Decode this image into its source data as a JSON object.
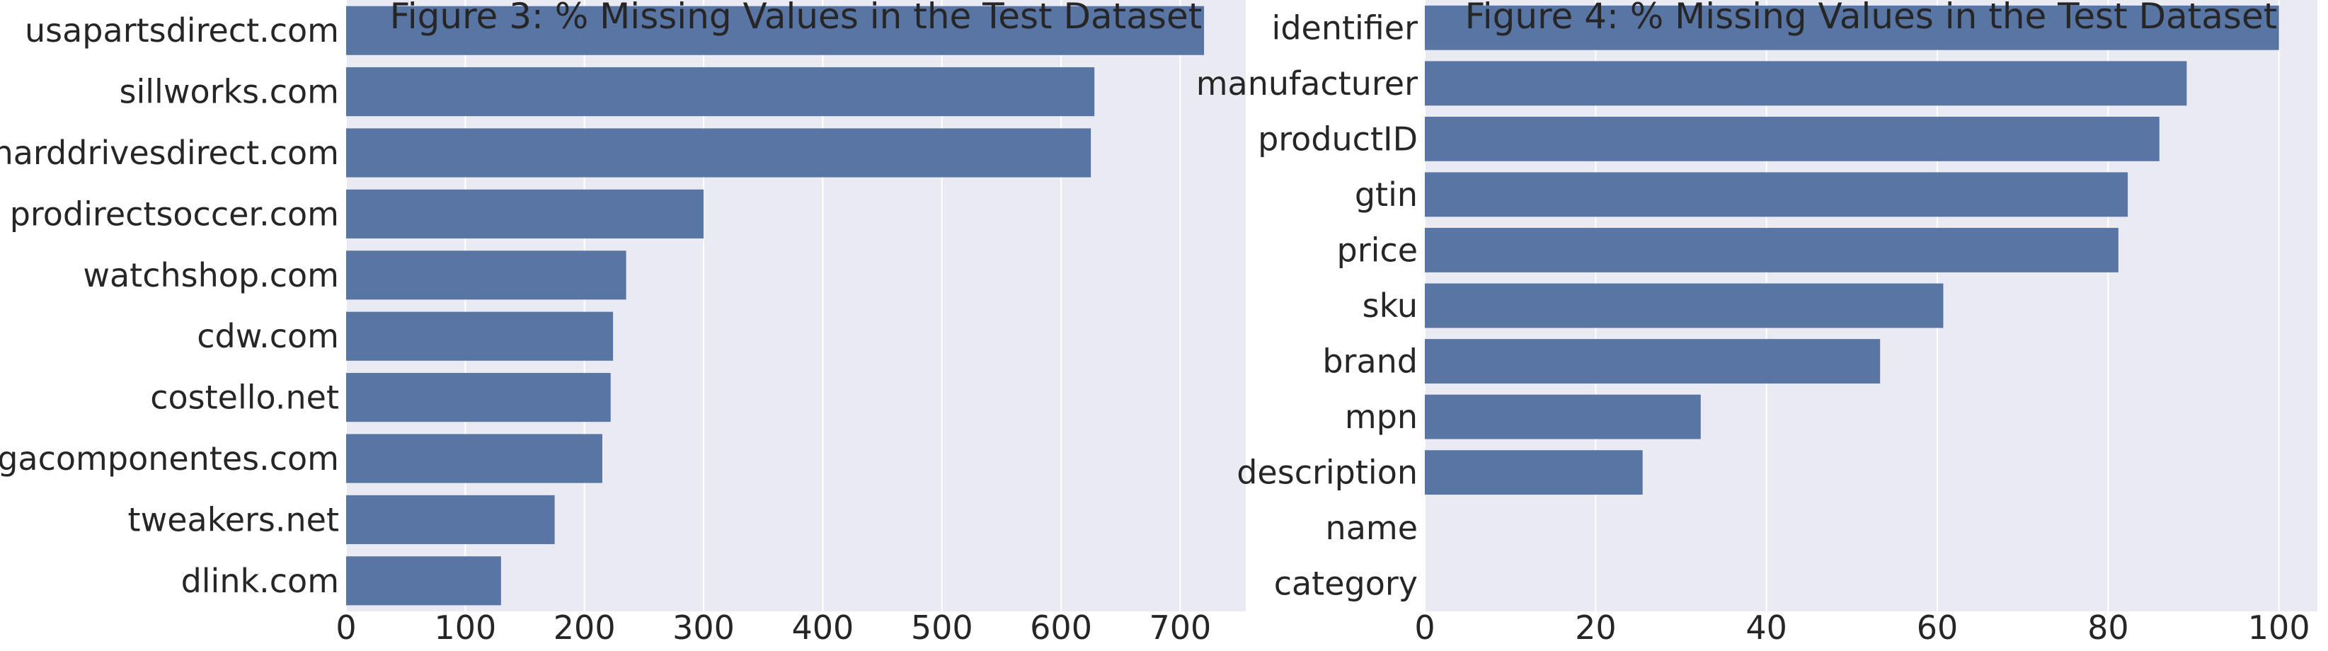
{
  "charts": [
    {
      "type": "bar",
      "orientation": "horizontal",
      "title": "Figure 3: % Missing Values in the Test Dataset",
      "categories": [
        "usapartsdirect.com",
        "sillworks.com",
        "harddrivesdirect.com",
        "prodirectsoccer.com",
        "watchshop.com",
        "cdw.com",
        "costello.net",
        "megacomponentes.com",
        "tweakers.net",
        "dlink.com"
      ],
      "values": [
        720,
        628,
        625,
        300,
        235,
        224,
        222,
        215,
        175,
        130
      ],
      "xlim": [
        0,
        755
      ],
      "xticks": [
        0,
        100,
        200,
        300,
        400,
        500,
        600,
        700
      ],
      "grid": true,
      "bar_color": "#5975a4",
      "background_color": "#eaeaf2"
    },
    {
      "type": "bar",
      "orientation": "horizontal",
      "title": "Figure 4: % Missing Values in the Test Dataset",
      "categories": [
        "identifier",
        "manufacturer",
        "productID",
        "gtin",
        "price",
        "sku",
        "brand",
        "mpn",
        "description",
        "name",
        "category"
      ],
      "values": [
        100,
        89.2,
        86,
        82.3,
        81.2,
        60.7,
        53.3,
        32.3,
        25.5,
        0,
        0
      ],
      "xlim": [
        0,
        104.5
      ],
      "xticks": [
        0,
        20,
        40,
        60,
        80,
        100
      ],
      "grid": true,
      "bar_color": "#5975a4",
      "background_color": "#eaeaf2"
    }
  ]
}
